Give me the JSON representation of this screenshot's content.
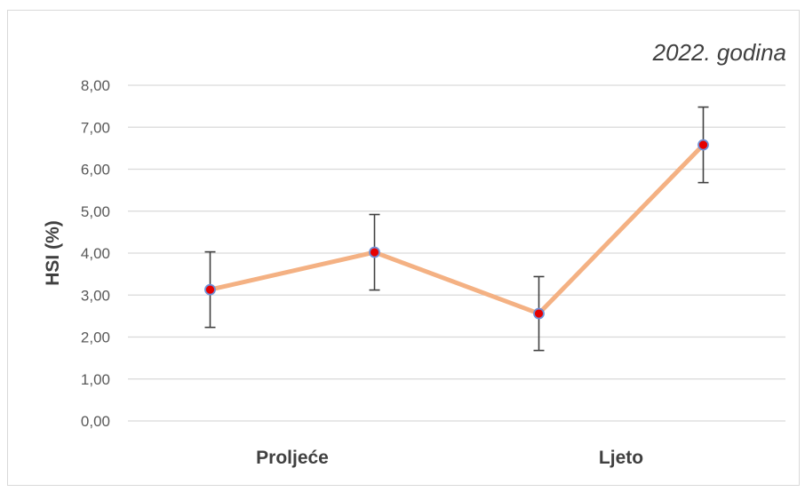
{
  "chart_data": {
    "type": "line",
    "title": "2022. godina",
    "ylabel": "HSI (%)",
    "xlabel": "",
    "ylim": [
      0,
      8
    ],
    "yticks": [
      "0,00",
      "1,00",
      "2,00",
      "3,00",
      "4,00",
      "5,00",
      "6,00",
      "7,00",
      "8,00"
    ],
    "categories": [
      "Proljeće",
      "Ljeto"
    ],
    "grid": true,
    "series": [
      {
        "points": [
          3.13,
          4.02,
          2.56,
          6.58
        ],
        "error": [
          0.9,
          0.9,
          0.88,
          0.9
        ]
      }
    ],
    "colors": {
      "line": "#f4b183",
      "marker_fill": "#e60000",
      "marker_edge": "#6f8fd6",
      "error_bar": "#404040",
      "grid": "#d9d9d9"
    }
  }
}
